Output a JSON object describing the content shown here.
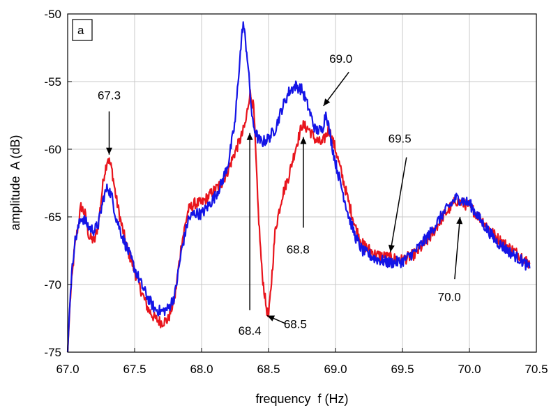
{
  "chart_data": {
    "type": "line",
    "panel_label": "a",
    "xlabel": "frequency  f (Hz)",
    "ylabel": "amplitude  A (dB)",
    "xlim": [
      67.0,
      70.5
    ],
    "ylim": [
      -75,
      -50
    ],
    "xticks": [
      67.0,
      67.5,
      68.0,
      68.5,
      69.0,
      69.5,
      70.0,
      70.5
    ],
    "xtick_labels": [
      "67.0",
      "67.5",
      "68.0",
      "68.5",
      "69.0",
      "69.5",
      "70.0",
      "70.5"
    ],
    "yticks": [
      -75,
      -70,
      -65,
      -60,
      -55,
      -50
    ],
    "ytick_labels": [
      "-75",
      "-70",
      "-65",
      "-60",
      "-55",
      "-50"
    ],
    "grid": true,
    "series": [
      {
        "color": "#e8141c",
        "points": [
          [
            67.0,
            -75
          ],
          [
            67.02,
            -71
          ],
          [
            67.05,
            -67.5
          ],
          [
            67.08,
            -65.5
          ],
          [
            67.1,
            -64.2
          ],
          [
            67.13,
            -64.8
          ],
          [
            67.16,
            -66.5
          ],
          [
            67.2,
            -66.8
          ],
          [
            67.23,
            -65.5
          ],
          [
            67.27,
            -62
          ],
          [
            67.3,
            -60.6
          ],
          [
            67.33,
            -61.5
          ],
          [
            67.36,
            -63.5
          ],
          [
            67.4,
            -65.5
          ],
          [
            67.45,
            -67.5
          ],
          [
            67.5,
            -69
          ],
          [
            67.55,
            -70.5
          ],
          [
            67.6,
            -71.8
          ],
          [
            67.65,
            -72.5
          ],
          [
            67.7,
            -72.8
          ],
          [
            67.75,
            -72.6
          ],
          [
            67.8,
            -71
          ],
          [
            67.85,
            -67
          ],
          [
            67.9,
            -64.5
          ],
          [
            67.95,
            -64
          ],
          [
            68.0,
            -64
          ],
          [
            68.05,
            -63.5
          ],
          [
            68.1,
            -63
          ],
          [
            68.15,
            -62.5
          ],
          [
            68.2,
            -61.5
          ],
          [
            68.25,
            -60.2
          ],
          [
            68.3,
            -59
          ],
          [
            68.33,
            -58
          ],
          [
            68.36,
            -55.8
          ],
          [
            68.39,
            -57
          ],
          [
            68.42,
            -64
          ],
          [
            68.45,
            -69
          ],
          [
            68.48,
            -71.5
          ],
          [
            68.5,
            -72.5
          ],
          [
            68.52,
            -70
          ],
          [
            68.55,
            -66
          ],
          [
            68.6,
            -63.5
          ],
          [
            68.65,
            -62
          ],
          [
            68.7,
            -60
          ],
          [
            68.75,
            -58.2
          ],
          [
            68.8,
            -58.5
          ],
          [
            68.85,
            -59.3
          ],
          [
            68.9,
            -59.6
          ],
          [
            68.95,
            -58.5
          ],
          [
            69.0,
            -60
          ],
          [
            69.05,
            -62
          ],
          [
            69.1,
            -64
          ],
          [
            69.15,
            -65.8
          ],
          [
            69.2,
            -67
          ],
          [
            69.3,
            -67.8
          ],
          [
            69.4,
            -68
          ],
          [
            69.5,
            -68.2
          ],
          [
            69.6,
            -67.7
          ],
          [
            69.7,
            -66.6
          ],
          [
            69.8,
            -65
          ],
          [
            69.9,
            -63.8
          ],
          [
            70.0,
            -64.2
          ],
          [
            70.1,
            -65.3
          ],
          [
            70.2,
            -66.5
          ],
          [
            70.3,
            -67.3
          ],
          [
            70.4,
            -68
          ],
          [
            70.45,
            -68.5
          ]
        ]
      },
      {
        "color": "#1414e6",
        "points": [
          [
            67.0,
            -75
          ],
          [
            67.02,
            -70.5
          ],
          [
            67.05,
            -67
          ],
          [
            67.08,
            -65.8
          ],
          [
            67.1,
            -65
          ],
          [
            67.13,
            -65.3
          ],
          [
            67.16,
            -65.8
          ],
          [
            67.2,
            -66
          ],
          [
            67.23,
            -65.5
          ],
          [
            67.27,
            -63.5
          ],
          [
            67.3,
            -62.8
          ],
          [
            67.33,
            -63.5
          ],
          [
            67.36,
            -65
          ],
          [
            67.4,
            -66.2
          ],
          [
            67.45,
            -67.5
          ],
          [
            67.5,
            -68.8
          ],
          [
            67.55,
            -70
          ],
          [
            67.6,
            -71
          ],
          [
            67.65,
            -71.8
          ],
          [
            67.7,
            -72
          ],
          [
            67.75,
            -71.8
          ],
          [
            67.8,
            -70.8
          ],
          [
            67.85,
            -67.5
          ],
          [
            67.9,
            -65.2
          ],
          [
            67.95,
            -64.7
          ],
          [
            68.0,
            -64.8
          ],
          [
            68.05,
            -64.2
          ],
          [
            68.1,
            -63.5
          ],
          [
            68.15,
            -62.5
          ],
          [
            68.2,
            -61
          ],
          [
            68.25,
            -58
          ],
          [
            68.28,
            -54
          ],
          [
            68.31,
            -50.6
          ],
          [
            68.34,
            -53
          ],
          [
            68.38,
            -58
          ],
          [
            68.42,
            -59.2
          ],
          [
            68.45,
            -59.5
          ],
          [
            68.5,
            -59.2
          ],
          [
            68.55,
            -58.5
          ],
          [
            68.6,
            -57
          ],
          [
            68.65,
            -55.8
          ],
          [
            68.7,
            -55.3
          ],
          [
            68.75,
            -55.6
          ],
          [
            68.8,
            -57
          ],
          [
            68.85,
            -58.6
          ],
          [
            68.9,
            -58.6
          ],
          [
            68.93,
            -57.2
          ],
          [
            68.96,
            -59
          ],
          [
            69.0,
            -61
          ],
          [
            69.05,
            -63
          ],
          [
            69.1,
            -65
          ],
          [
            69.15,
            -66.5
          ],
          [
            69.2,
            -67.5
          ],
          [
            69.3,
            -68.1
          ],
          [
            69.4,
            -68.4
          ],
          [
            69.5,
            -68.3
          ],
          [
            69.6,
            -67.5
          ],
          [
            69.7,
            -66.3
          ],
          [
            69.8,
            -64.8
          ],
          [
            69.9,
            -63.6
          ],
          [
            70.0,
            -64
          ],
          [
            70.1,
            -65.5
          ],
          [
            70.2,
            -66.8
          ],
          [
            70.3,
            -67.6
          ],
          [
            70.4,
            -68.3
          ],
          [
            70.45,
            -68.8
          ]
        ]
      }
    ],
    "annotations": [
      {
        "label": "67.3",
        "text_at": [
          67.31,
          -56.0
        ],
        "arrow_from": [
          67.31,
          -57.2
        ],
        "arrow_to": [
          67.31,
          -60.4
        ]
      },
      {
        "label": "68.4",
        "text_at": [
          68.36,
          -73.4
        ],
        "arrow_from": [
          68.36,
          -71.9
        ],
        "arrow_to": [
          68.36,
          -58.8
        ]
      },
      {
        "label": "68.5",
        "text_at": [
          68.7,
          -72.9
        ],
        "arrow_from": [
          68.63,
          -72.9
        ],
        "arrow_to": [
          68.49,
          -72.3
        ]
      },
      {
        "label": "68.8",
        "text_at": [
          68.72,
          -67.4
        ],
        "arrow_from": [
          68.76,
          -65.8
        ],
        "arrow_to": [
          68.76,
          -59.1
        ]
      },
      {
        "label": "69.0",
        "text_at": [
          69.04,
          -53.3
        ],
        "arrow_from": [
          69.1,
          -54.3
        ],
        "arrow_to": [
          68.91,
          -56.8
        ]
      },
      {
        "label": "69.5",
        "text_at": [
          69.48,
          -59.2
        ],
        "arrow_from": [
          69.53,
          -60.6
        ],
        "arrow_to": [
          69.41,
          -67.6
        ]
      },
      {
        "label": "70.0",
        "text_at": [
          69.85,
          -70.9
        ],
        "arrow_from": [
          69.89,
          -69.6
        ],
        "arrow_to": [
          69.93,
          -65.0
        ]
      }
    ]
  }
}
